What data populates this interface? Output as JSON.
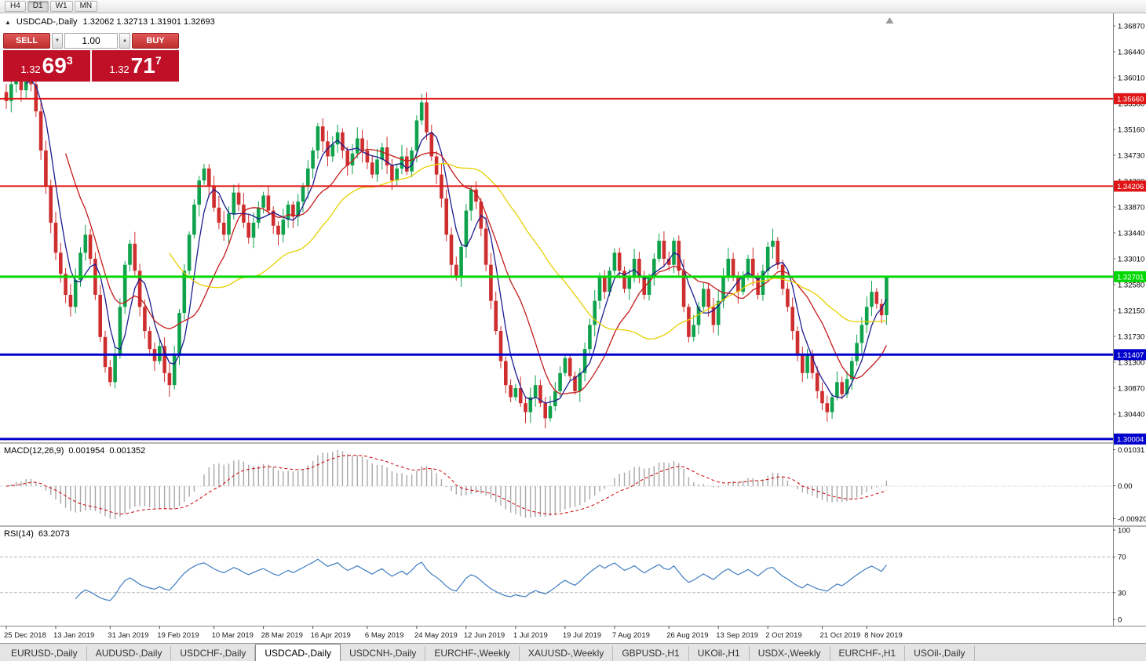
{
  "toolbar": {
    "timeframes": [
      "H4",
      "D1",
      "W1",
      "MN"
    ],
    "active": "D1"
  },
  "chart": {
    "title": "USDCAD-,Daily",
    "ohlc_text": "1.32062 1.32713 1.31901 1.32693"
  },
  "one_click": {
    "sell_label": "SELL",
    "buy_label": "BUY",
    "volume": "1.00",
    "sell_display": {
      "prefix": "1.32",
      "pips": "69",
      "frac": "3"
    },
    "buy_display": {
      "prefix": "1.32",
      "pips": "71",
      "frac": "7"
    },
    "price_bg": "#c01028"
  },
  "price_axis": {
    "top": 1.3687,
    "step": 0.0043,
    "labels": [
      "1.36870",
      "1.36440",
      "1.36010",
      "1.35580",
      "1.35160",
      "1.34730",
      "1.34300",
      "1.33870",
      "1.33440",
      "1.33010",
      "1.32580",
      "1.32150",
      "1.31730",
      "1.31300",
      "1.30870",
      "1.30440"
    ]
  },
  "hlines": [
    {
      "price": 1.3566,
      "label": "1.35660",
      "color": "#e01414",
      "width": 2
    },
    {
      "price": 1.34206,
      "label": "1.34206",
      "color": "#e01414",
      "width": 2
    },
    {
      "price": 1.32701,
      "label": "1.32701",
      "color": "#00d800",
      "width": 3
    },
    {
      "price": 1.31407,
      "label": "1.31407",
      "color": "#0000cd",
      "width": 3
    },
    {
      "price": 1.30004,
      "label": "1.30004",
      "color": "#0000cd",
      "width": 3
    }
  ],
  "macd": {
    "label": "MACD(12,26,9)",
    "value_main": "0.001954",
    "value_signal": "0.001352",
    "scale": [
      "0.01031",
      "0.00",
      "-0.00920"
    ]
  },
  "rsi": {
    "label": "RSI(14)",
    "value": "63.2073",
    "scale": [
      "100",
      "70",
      "30",
      "0"
    ],
    "levels": [
      70,
      30
    ]
  },
  "dates": {
    "labels": [
      "25 Dec 2018",
      "13 Jan 2019",
      "31 Jan 2019",
      "19 Feb 2019",
      "10 Mar 2019",
      "28 Mar 2019",
      "16 Apr 2019",
      "6 May 2019",
      "24 May 2019",
      "12 Jun 2019",
      "1 Jul 2019",
      "19 Jul 2019",
      "7 Aug 2019",
      "26 Aug 2019",
      "13 Sep 2019",
      "2 Oct 2019",
      "21 Oct 2019",
      "8 Nov 2019"
    ],
    "indices": [
      0,
      10,
      21,
      31,
      42,
      52,
      62,
      73,
      83,
      93,
      103,
      113,
      123,
      134,
      144,
      154,
      165,
      174
    ]
  },
  "tabs": [
    {
      "label": "EURUSD-,Daily"
    },
    {
      "label": "AUDUSD-,Daily"
    },
    {
      "label": "USDCHF-,Daily"
    },
    {
      "label": "USDCAD-,Daily",
      "active": true
    },
    {
      "label": "USDCNH-,Daily"
    },
    {
      "label": "EURCHF-,Weekly"
    },
    {
      "label": "XAUUSD-,Weekly"
    },
    {
      "label": "GBPUSD-,H1"
    },
    {
      "label": "UKOil-,H1"
    },
    {
      "label": "USDX-,Weekly"
    },
    {
      "label": "EURCHF-,H1"
    },
    {
      "label": "USOil-,Daily"
    }
  ],
  "colors": {
    "up_candle": "#0fa24c",
    "down_candle": "#cf2e2e",
    "macd_hist": "#a8a8a8",
    "macd_signal": "#cc0000",
    "rsi_line": "#3d7dc0"
  },
  "chart_data": {
    "type": "candlestick",
    "symbol": "USDCAD",
    "timeframe": "Daily",
    "ylim": [
      1.30004,
      1.3687
    ],
    "last_candle": {
      "open": 1.32062,
      "high": 1.32713,
      "low": 1.31901,
      "close": 1.32693
    },
    "moving_averages": [
      {
        "period": 5,
        "color": "#1c1c90"
      },
      {
        "period": 13,
        "color": "#c41a1a"
      },
      {
        "period": 34,
        "color": "#e6d000"
      }
    ],
    "closes": [
      1.3562,
      1.359,
      1.3608,
      1.358,
      1.3615,
      1.359,
      1.3545,
      1.348,
      1.342,
      1.336,
      1.331,
      1.3275,
      1.324,
      1.322,
      1.3265,
      1.331,
      1.334,
      1.33,
      1.324,
      1.317,
      1.312,
      1.3095,
      1.314,
      1.322,
      1.329,
      1.3325,
      1.328,
      1.322,
      1.318,
      1.315,
      1.313,
      1.3155,
      1.311,
      1.309,
      1.314,
      1.321,
      1.328,
      1.334,
      1.339,
      1.343,
      1.345,
      1.342,
      1.3385,
      1.336,
      1.334,
      1.3375,
      1.341,
      1.339,
      1.336,
      1.3335,
      1.336,
      1.3385,
      1.3405,
      1.338,
      1.3355,
      1.334,
      1.3365,
      1.339,
      1.337,
      1.3395,
      1.342,
      1.345,
      1.348,
      1.352,
      1.3495,
      1.347,
      1.349,
      1.351,
      1.348,
      1.3455,
      1.3475,
      1.35,
      1.348,
      1.346,
      1.344,
      1.3465,
      1.3485,
      1.3455,
      1.343,
      1.345,
      1.347,
      1.3445,
      1.348,
      1.353,
      1.356,
      1.351,
      1.347,
      1.344,
      1.34,
      1.334,
      1.329,
      1.327,
      1.332,
      1.338,
      1.3415,
      1.3395,
      1.335,
      1.329,
      1.323,
      1.318,
      1.313,
      1.309,
      1.307,
      1.3085,
      1.306,
      1.3045,
      1.307,
      1.309,
      1.306,
      1.3035,
      1.3055,
      1.308,
      1.311,
      1.3135,
      1.3105,
      1.308,
      1.311,
      1.315,
      1.319,
      1.323,
      1.327,
      1.3245,
      1.328,
      1.331,
      1.328,
      1.325,
      1.327,
      1.33,
      1.327,
      1.324,
      1.327,
      1.33,
      1.333,
      1.33,
      1.329,
      1.333,
      1.328,
      1.322,
      1.317,
      1.319,
      1.322,
      1.325,
      1.322,
      1.319,
      1.323,
      1.327,
      1.33,
      1.327,
      1.3245,
      1.327,
      1.33,
      1.327,
      1.324,
      1.328,
      1.332,
      1.333,
      1.329,
      1.325,
      1.322,
      1.318,
      1.314,
      1.311,
      1.314,
      1.311,
      1.308,
      1.306,
      1.3045,
      1.307,
      1.3095,
      1.3075,
      1.31,
      1.313,
      1.316,
      1.319,
      1.322,
      1.3245,
      1.3225,
      1.3206,
      1.3269
    ]
  }
}
